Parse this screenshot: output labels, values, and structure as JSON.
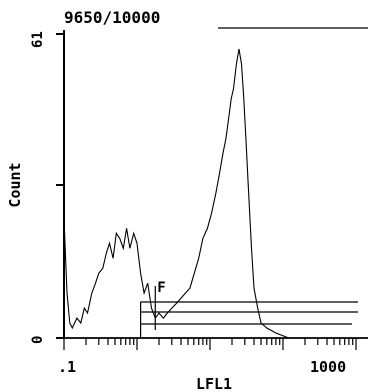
{
  "chart_data": {
    "type": "area",
    "header": "9650/10000",
    "xlabel": "LFL1",
    "ylabel": "Count",
    "x_scale": "log",
    "xlim": [
      0.1,
      1000
    ],
    "ylim": [
      0,
      61
    ],
    "x_tick_labels": [
      ".1",
      "1000"
    ],
    "y_tick_labels": [
      "0",
      "61"
    ],
    "marker_label": "F",
    "gate_boundaries_x": [
      1.12,
      1.78
    ],
    "color": "#000000",
    "series": [
      {
        "x": [
          0.1,
          0.11,
          0.12,
          0.13,
          0.15,
          0.17,
          0.19,
          0.21,
          0.24,
          0.27,
          0.3,
          0.34,
          0.38,
          0.42,
          0.47,
          0.52,
          0.58,
          0.65,
          0.72,
          0.8,
          0.9,
          1.0,
          1.12,
          1.25,
          1.4,
          1.58,
          1.78,
          2.0,
          2.3,
          2.6,
          3.0,
          3.5,
          4.0,
          4.6,
          5.3,
          6.1,
          7.0,
          8.0,
          9.2,
          10.5,
          12,
          13.5,
          15,
          16.5,
          18,
          19.5,
          21,
          23,
          25,
          27,
          29,
          31,
          33,
          35,
          37,
          40,
          45,
          50,
          60,
          80,
          120,
          200,
          400,
          1000
        ],
        "y": [
          24,
          9,
          3,
          2,
          4,
          3,
          6,
          5,
          9,
          11,
          13,
          14,
          17,
          19,
          16,
          21,
          20,
          18,
          22,
          18,
          21,
          19,
          13,
          9,
          11,
          6,
          4,
          5,
          4,
          5,
          6,
          7,
          8,
          9,
          10,
          13,
          16,
          20,
          22,
          25,
          29,
          33,
          37,
          40,
          44,
          48,
          50,
          55,
          58,
          55,
          48,
          40,
          32,
          25,
          18,
          10,
          6,
          3,
          2,
          1,
          0,
          0,
          0,
          0
        ]
      }
    ]
  }
}
